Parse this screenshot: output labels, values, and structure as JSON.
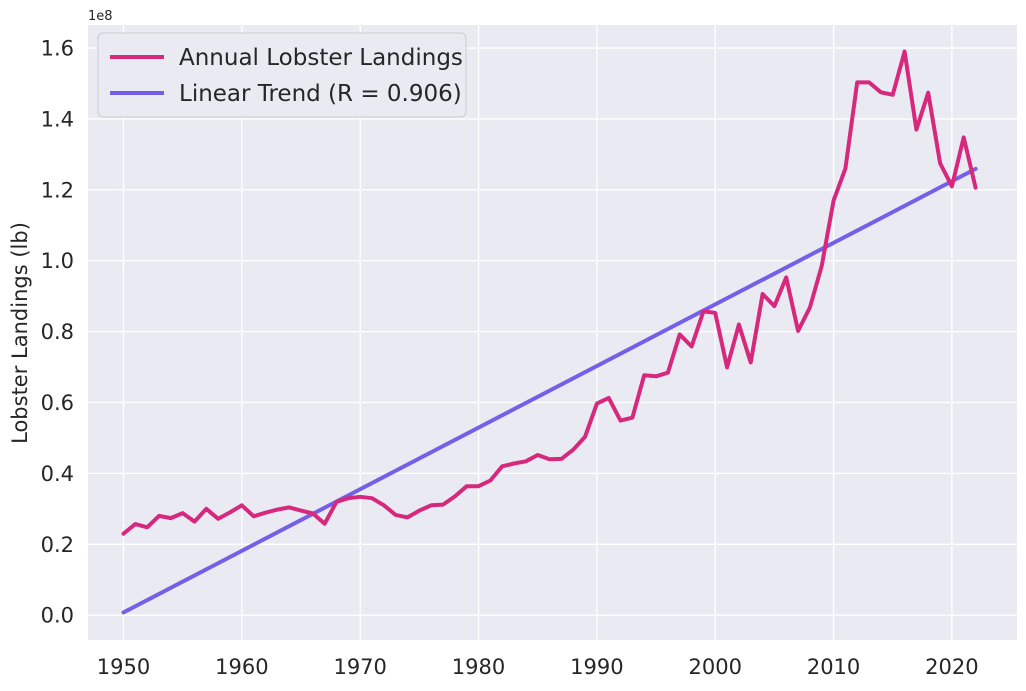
{
  "chart_data": {
    "type": "line",
    "title": "",
    "xlabel": "",
    "ylabel": "Lobster Landings (lb)",
    "y_scale_label": "1e8",
    "xlim": [
      1947,
      2025.5
    ],
    "ylim": [
      -0.07,
      1.665
    ],
    "x_ticks": [
      1950,
      1960,
      1970,
      1980,
      1990,
      2000,
      2010,
      2020
    ],
    "y_ticks": [
      0.0,
      0.2,
      0.4,
      0.6,
      0.8,
      1.0,
      1.2,
      1.4,
      1.6
    ],
    "grid": true,
    "legend_position": "top-left",
    "background": "#eaeaf2",
    "series": [
      {
        "name": "Annual Lobster Landings",
        "color": "#d6297d",
        "x": [
          1950,
          1951,
          1952,
          1953,
          1954,
          1955,
          1956,
          1957,
          1958,
          1959,
          1960,
          1961,
          1962,
          1963,
          1964,
          1965,
          1966,
          1967,
          1968,
          1969,
          1970,
          1971,
          1972,
          1973,
          1974,
          1975,
          1976,
          1977,
          1978,
          1979,
          1980,
          1981,
          1982,
          1983,
          1984,
          1985,
          1986,
          1987,
          1988,
          1989,
          1990,
          1991,
          1992,
          1993,
          1994,
          1995,
          1996,
          1997,
          1998,
          1999,
          2000,
          2001,
          2002,
          2003,
          2004,
          2005,
          2006,
          2007,
          2008,
          2009,
          2010,
          2011,
          2012,
          2013,
          2014,
          2015,
          2016,
          2017,
          2018,
          2019,
          2020,
          2021,
          2022
        ],
        "y": [
          0.23,
          0.257,
          0.248,
          0.28,
          0.274,
          0.288,
          0.264,
          0.3,
          0.272,
          0.29,
          0.31,
          0.279,
          0.289,
          0.298,
          0.304,
          0.295,
          0.287,
          0.258,
          0.32,
          0.33,
          0.334,
          0.33,
          0.31,
          0.283,
          0.276,
          0.295,
          0.31,
          0.312,
          0.335,
          0.364,
          0.364,
          0.38,
          0.42,
          0.428,
          0.434,
          0.452,
          0.44,
          0.441,
          0.467,
          0.503,
          0.597,
          0.613,
          0.549,
          0.557,
          0.677,
          0.674,
          0.684,
          0.792,
          0.758,
          0.857,
          0.853,
          0.699,
          0.82,
          0.713,
          0.906,
          0.872,
          0.953,
          0.802,
          0.868,
          0.985,
          1.17,
          1.26,
          1.503,
          1.503,
          1.475,
          1.468,
          1.59,
          1.37,
          1.474,
          1.275,
          1.21,
          1.348,
          1.206
        ]
      },
      {
        "name": "Linear Trend (R = 0.906)",
        "color": "#7460e8",
        "x": [
          1950,
          2022
        ],
        "y": [
          0.008,
          1.259
        ]
      }
    ]
  }
}
